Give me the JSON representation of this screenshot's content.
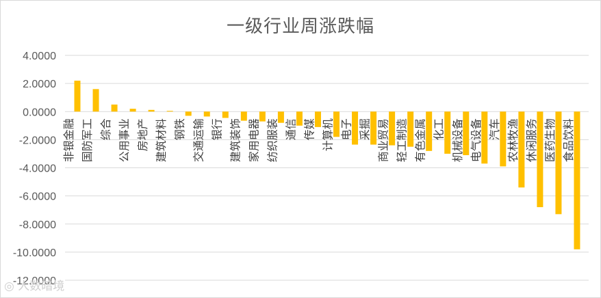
{
  "chart_data": {
    "type": "bar",
    "title": "一级行业周涨跌幅",
    "categories": [
      "非银金融",
      "国防军工",
      "综合",
      "公用事业",
      "房地产",
      "建筑材料",
      "钢铁",
      "交通运输",
      "银行",
      "建筑装饰",
      "家用电器",
      "纺织服装",
      "通信",
      "传媒",
      "计算机",
      "电子",
      "采掘",
      "商业贸易",
      "轻工制造",
      "有色金属",
      "化工",
      "机械设备",
      "电气设备",
      "汽车",
      "农林牧渔",
      "休闲服务",
      "医药生物",
      "食品饮料"
    ],
    "values": [
      2.2,
      1.6,
      0.5,
      0.2,
      0.12,
      0.05,
      -0.3,
      -0.35,
      -0.45,
      -0.65,
      -0.7,
      -0.8,
      -1.0,
      -1.1,
      -1.8,
      -2.35,
      -2.35,
      -2.4,
      -2.5,
      -2.8,
      -3.0,
      -3.1,
      -3.7,
      -3.9,
      -5.4,
      -6.8,
      -7.3,
      -9.8
    ],
    "ylim": [
      -12,
      4
    ],
    "yticks": [
      "4.0000",
      "2.0000",
      "0.0000",
      "-2.0000",
      "-4.0000",
      "-6.0000",
      "-8.0000",
      "-10.0000",
      "-12.0000"
    ],
    "xlabel": "",
    "ylabel": "",
    "grid": true,
    "legend": "none",
    "bar_color": "#FFC000"
  },
  "watermark": "人数暗境"
}
